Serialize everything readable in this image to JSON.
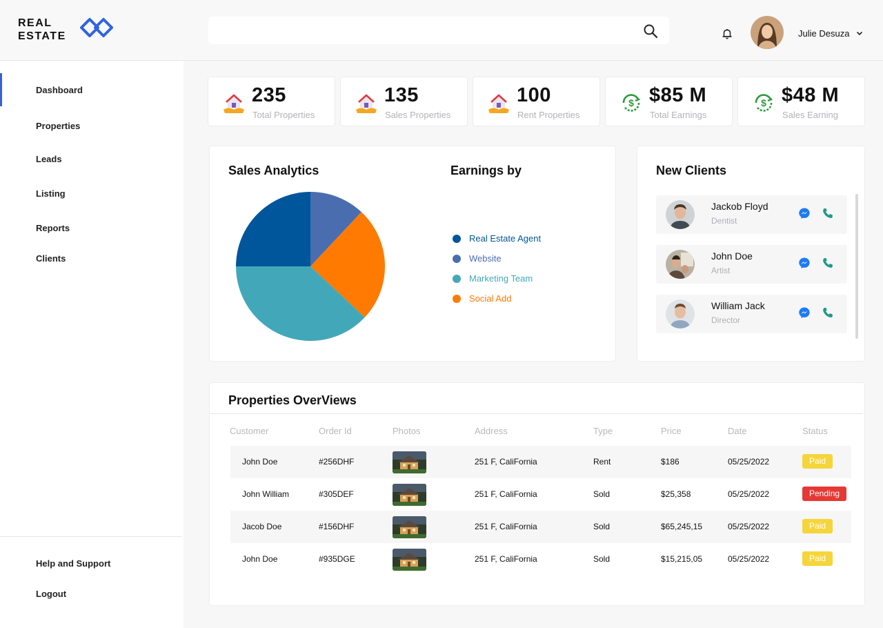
{
  "brand": {
    "line1": "REAL",
    "line2": "ESTATE",
    "accent": "#2f63e0"
  },
  "search": {
    "placeholder": ""
  },
  "user": {
    "name": "Julie Desuza"
  },
  "sidebar": {
    "items": [
      "Dashboard",
      "Properties",
      "Leads",
      "Listing",
      "Reports",
      "Clients"
    ],
    "active": "Dashboard",
    "bottom": [
      "Help and Support",
      "Logout"
    ]
  },
  "stats": [
    {
      "value": "235",
      "label": "Total Properties",
      "icon": "house-hand-icon"
    },
    {
      "value": "135",
      "label": "Sales Properties",
      "icon": "house-hand-icon"
    },
    {
      "value": "100",
      "label": "Rent Properties",
      "icon": "house-hand-icon"
    },
    {
      "value": "$85 M",
      "label": "Total Earnings",
      "icon": "dollar-cycle-icon"
    },
    {
      "value": "$48 M",
      "label": "Sales Earning",
      "icon": "dollar-cycle-icon"
    }
  ],
  "analytics": {
    "title": "Sales Analytics",
    "legend_title": "Earnings by"
  },
  "chart_data": {
    "type": "pie",
    "title": "Sales Analytics",
    "categories": [
      "Real Estate Agent",
      "Website",
      "Marketing Team",
      "Social Add"
    ],
    "values": [
      25,
      12,
      38,
      25
    ],
    "colors": [
      "#00569a",
      "#4a6db0",
      "#42a8b9",
      "#ff7a00"
    ],
    "legend": "right"
  },
  "clients": {
    "title": "New Clients",
    "items": [
      {
        "name": "Jackob Floyd",
        "role": "Dentist"
      },
      {
        "name": "John Doe",
        "role": "Artist"
      },
      {
        "name": "William Jack",
        "role": "Director"
      }
    ]
  },
  "overview": {
    "title": "Properties OverViews",
    "headers": [
      "Customer",
      "Order Id",
      "Photos",
      "Address",
      "Type",
      "Price",
      "Date",
      "Status"
    ],
    "rows": [
      {
        "customer": "John Doe",
        "order": "#256DHF",
        "address": "251 F, CaliFornia",
        "type": "Rent",
        "price": "$186",
        "date": "05/25/2022",
        "status": "Paid"
      },
      {
        "customer": "John William",
        "order": "#305DEF",
        "address": "251 F, CaliFornia",
        "type": "Sold",
        "price": "$25,358",
        "date": "05/25/2022",
        "status": "Pending"
      },
      {
        "customer": "Jacob Doe",
        "order": "#156DHF",
        "address": "251 F, CaliFornia",
        "type": "Sold",
        "price": "$65,245,15",
        "date": "05/25/2022",
        "status": "Paid"
      },
      {
        "customer": "John Doe",
        "order": "#935DGE",
        "address": "251 F, CaliFornia",
        "type": "Sold",
        "price": "$15,215,05",
        "date": "05/25/2022",
        "status": "Paid"
      }
    ]
  }
}
